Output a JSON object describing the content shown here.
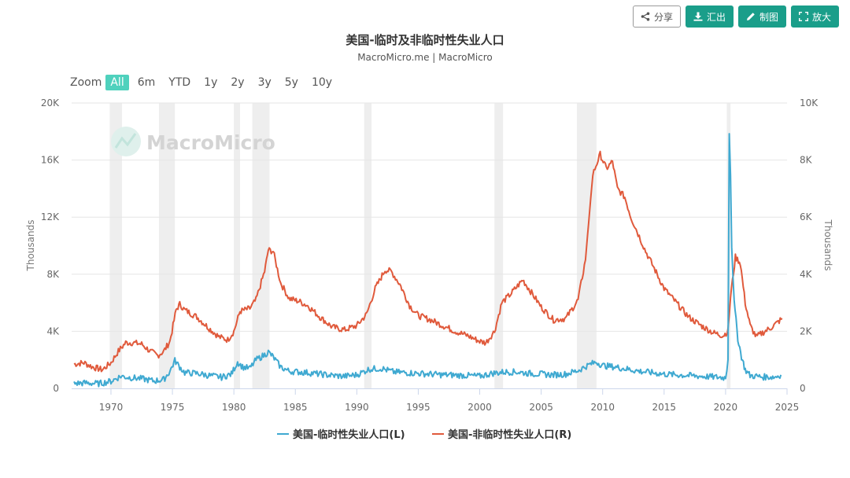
{
  "toolbar": {
    "share": {
      "label": "分享",
      "icon": "share-icon"
    },
    "export": {
      "label": "汇出",
      "icon": "download-icon"
    },
    "draw": {
      "label": "制图",
      "icon": "pencil-icon"
    },
    "expand": {
      "label": "放大",
      "icon": "expand-icon"
    }
  },
  "zoom": {
    "label": "Zoom",
    "options": [
      "All",
      "6m",
      "YTD",
      "1y",
      "2y",
      "3y",
      "5y",
      "10y"
    ],
    "active": "All"
  },
  "watermark": "MacroMicro",
  "colors": {
    "left_series": "#3fa9d1",
    "right_series": "#e05a3c",
    "accent": "#1a9e8a",
    "zoom_active": "#4fd1bd",
    "recession_band": "#eeeeee"
  },
  "chart_data": {
    "type": "line",
    "title": "美国-临时及非临时性失业人口",
    "subtitle": "MacroMicro.me | MacroMicro",
    "xlim": [
      1966.8,
      2025
    ],
    "x_ticks": [
      1970,
      1975,
      1980,
      1985,
      1990,
      1995,
      2000,
      2005,
      2010,
      2015,
      2020,
      2025
    ],
    "left_axis": {
      "title": "Thousands",
      "ylim": [
        0,
        20000
      ],
      "ticks": [
        0,
        4000,
        8000,
        12000,
        16000,
        20000
      ],
      "tick_labels": [
        "0",
        "4K",
        "8K",
        "12K",
        "16K",
        "20K"
      ]
    },
    "right_axis": {
      "title": "Thousands",
      "ylim": [
        0,
        10000
      ],
      "ticks": [
        0,
        2000,
        4000,
        6000,
        8000,
        10000
      ],
      "tick_labels": [
        "0",
        "2K",
        "4K",
        "6K",
        "8K",
        "10K"
      ]
    },
    "recessions": [
      [
        1969.9,
        1970.9
      ],
      [
        1973.9,
        1975.2
      ],
      [
        1980.0,
        1980.5
      ],
      [
        1981.5,
        1982.9
      ],
      [
        1990.6,
        1991.2
      ],
      [
        2001.2,
        2001.9
      ],
      [
        2007.9,
        2009.5
      ],
      [
        2020.1,
        2020.4
      ]
    ],
    "legend_position": "bottom-center",
    "series": [
      {
        "name": "美国-临时性失业人口(L)",
        "axis": "left",
        "color": "#3fa9d1",
        "points": [
          [
            1967.0,
            350
          ],
          [
            1968.0,
            380
          ],
          [
            1969.0,
            330
          ],
          [
            1970.0,
            500
          ],
          [
            1970.8,
            850
          ],
          [
            1971.5,
            760
          ],
          [
            1972.5,
            680
          ],
          [
            1973.5,
            520
          ],
          [
            1974.3,
            620
          ],
          [
            1974.8,
            1200
          ],
          [
            1975.2,
            1950
          ],
          [
            1975.6,
            1500
          ],
          [
            1976.0,
            1100
          ],
          [
            1977.0,
            1050
          ],
          [
            1978.0,
            900
          ],
          [
            1979.0,
            780
          ],
          [
            1979.8,
            1000
          ],
          [
            1980.3,
            1850
          ],
          [
            1980.7,
            1500
          ],
          [
            1981.3,
            1400
          ],
          [
            1981.8,
            2000
          ],
          [
            1982.5,
            2350
          ],
          [
            1982.8,
            2550
          ],
          [
            1983.2,
            2200
          ],
          [
            1983.8,
            1500
          ],
          [
            1984.5,
            1200
          ],
          [
            1986.0,
            1100
          ],
          [
            1988.0,
            900
          ],
          [
            1989.0,
            850
          ],
          [
            1990.0,
            950
          ],
          [
            1991.0,
            1350
          ],
          [
            1992.0,
            1400
          ],
          [
            1993.0,
            1150
          ],
          [
            1994.0,
            1100
          ],
          [
            1995.0,
            1050
          ],
          [
            1997.0,
            950
          ],
          [
            1999.0,
            900
          ],
          [
            2000.0,
            850
          ],
          [
            2001.0,
            1050
          ],
          [
            2002.0,
            1150
          ],
          [
            2003.0,
            1150
          ],
          [
            2004.0,
            1050
          ],
          [
            2005.0,
            1000
          ],
          [
            2006.0,
            950
          ],
          [
            2007.0,
            1000
          ],
          [
            2008.0,
            1250
          ],
          [
            2009.0,
            1700
          ],
          [
            2009.5,
            1850
          ],
          [
            2010.0,
            1600
          ],
          [
            2011.0,
            1500
          ],
          [
            2012.0,
            1350
          ],
          [
            2013.0,
            1200
          ],
          [
            2014.0,
            1100
          ],
          [
            2015.0,
            1000
          ],
          [
            2016.0,
            950
          ],
          [
            2017.0,
            900
          ],
          [
            2018.0,
            850
          ],
          [
            2019.0,
            800
          ],
          [
            2020.0,
            750
          ],
          [
            2020.2,
            2000
          ],
          [
            2020.3,
            18000
          ],
          [
            2020.4,
            15000
          ],
          [
            2020.5,
            10000
          ],
          [
            2020.7,
            6000
          ],
          [
            2021.0,
            3500
          ],
          [
            2021.3,
            2200
          ],
          [
            2021.6,
            1300
          ],
          [
            2022.0,
            900
          ],
          [
            2023.0,
            800
          ],
          [
            2024.0,
            800
          ],
          [
            2024.5,
            950
          ]
        ]
      },
      {
        "name": "美国-非临时性失业人口(R)",
        "axis": "right",
        "color": "#e05a3c",
        "points": [
          [
            1967.0,
            850
          ],
          [
            1967.8,
            900
          ],
          [
            1968.5,
            750
          ],
          [
            1969.3,
            650
          ],
          [
            1970.0,
            900
          ],
          [
            1970.6,
            1300
          ],
          [
            1971.2,
            1600
          ],
          [
            1971.8,
            1600
          ],
          [
            1972.5,
            1550
          ],
          [
            1973.2,
            1300
          ],
          [
            1973.8,
            1150
          ],
          [
            1974.3,
            1300
          ],
          [
            1974.8,
            1650
          ],
          [
            1975.3,
            2750
          ],
          [
            1975.6,
            2950
          ],
          [
            1976.0,
            2750
          ],
          [
            1977.0,
            2500
          ],
          [
            1978.0,
            2100
          ],
          [
            1978.8,
            1800
          ],
          [
            1979.5,
            1700
          ],
          [
            1980.0,
            2000
          ],
          [
            1980.5,
            2700
          ],
          [
            1981.3,
            2800
          ],
          [
            1981.8,
            3100
          ],
          [
            1982.5,
            4100
          ],
          [
            1982.8,
            4850
          ],
          [
            1983.2,
            4800
          ],
          [
            1983.8,
            3700
          ],
          [
            1984.5,
            3150
          ],
          [
            1985.3,
            3050
          ],
          [
            1986.0,
            2900
          ],
          [
            1987.0,
            2500
          ],
          [
            1988.0,
            2150
          ],
          [
            1989.0,
            2050
          ],
          [
            1990.0,
            2200
          ],
          [
            1990.8,
            2600
          ],
          [
            1991.5,
            3500
          ],
          [
            1992.3,
            4150
          ],
          [
            1992.8,
            4100
          ],
          [
            1993.5,
            3650
          ],
          [
            1994.3,
            2900
          ],
          [
            1995.0,
            2550
          ],
          [
            1996.0,
            2400
          ],
          [
            1997.0,
            2200
          ],
          [
            1998.0,
            2000
          ],
          [
            1999.0,
            1850
          ],
          [
            2000.0,
            1650
          ],
          [
            2000.5,
            1600
          ],
          [
            2001.2,
            2000
          ],
          [
            2001.8,
            3000
          ],
          [
            2002.5,
            3300
          ],
          [
            2003.5,
            3800
          ],
          [
            2004.3,
            3300
          ],
          [
            2005.0,
            2850
          ],
          [
            2006.0,
            2400
          ],
          [
            2007.0,
            2450
          ],
          [
            2008.0,
            3100
          ],
          [
            2008.6,
            4500
          ],
          [
            2009.2,
            7500
          ],
          [
            2009.8,
            8200
          ],
          [
            2010.3,
            7700
          ],
          [
            2010.8,
            7950
          ],
          [
            2011.2,
            7000
          ],
          [
            2011.8,
            6700
          ],
          [
            2012.3,
            6000
          ],
          [
            2012.8,
            5500
          ],
          [
            2013.5,
            4800
          ],
          [
            2014.2,
            4200
          ],
          [
            2015.0,
            3500
          ],
          [
            2016.0,
            3000
          ],
          [
            2017.0,
            2500
          ],
          [
            2018.0,
            2200
          ],
          [
            2019.0,
            1950
          ],
          [
            2019.8,
            1850
          ],
          [
            2020.2,
            2000
          ],
          [
            2020.4,
            3200
          ],
          [
            2020.8,
            4600
          ],
          [
            2021.2,
            4400
          ],
          [
            2021.6,
            3000
          ],
          [
            2022.0,
            2200
          ],
          [
            2022.5,
            1800
          ],
          [
            2023.0,
            1950
          ],
          [
            2023.6,
            2100
          ],
          [
            2024.2,
            2300
          ],
          [
            2024.6,
            2450
          ]
        ]
      }
    ]
  }
}
